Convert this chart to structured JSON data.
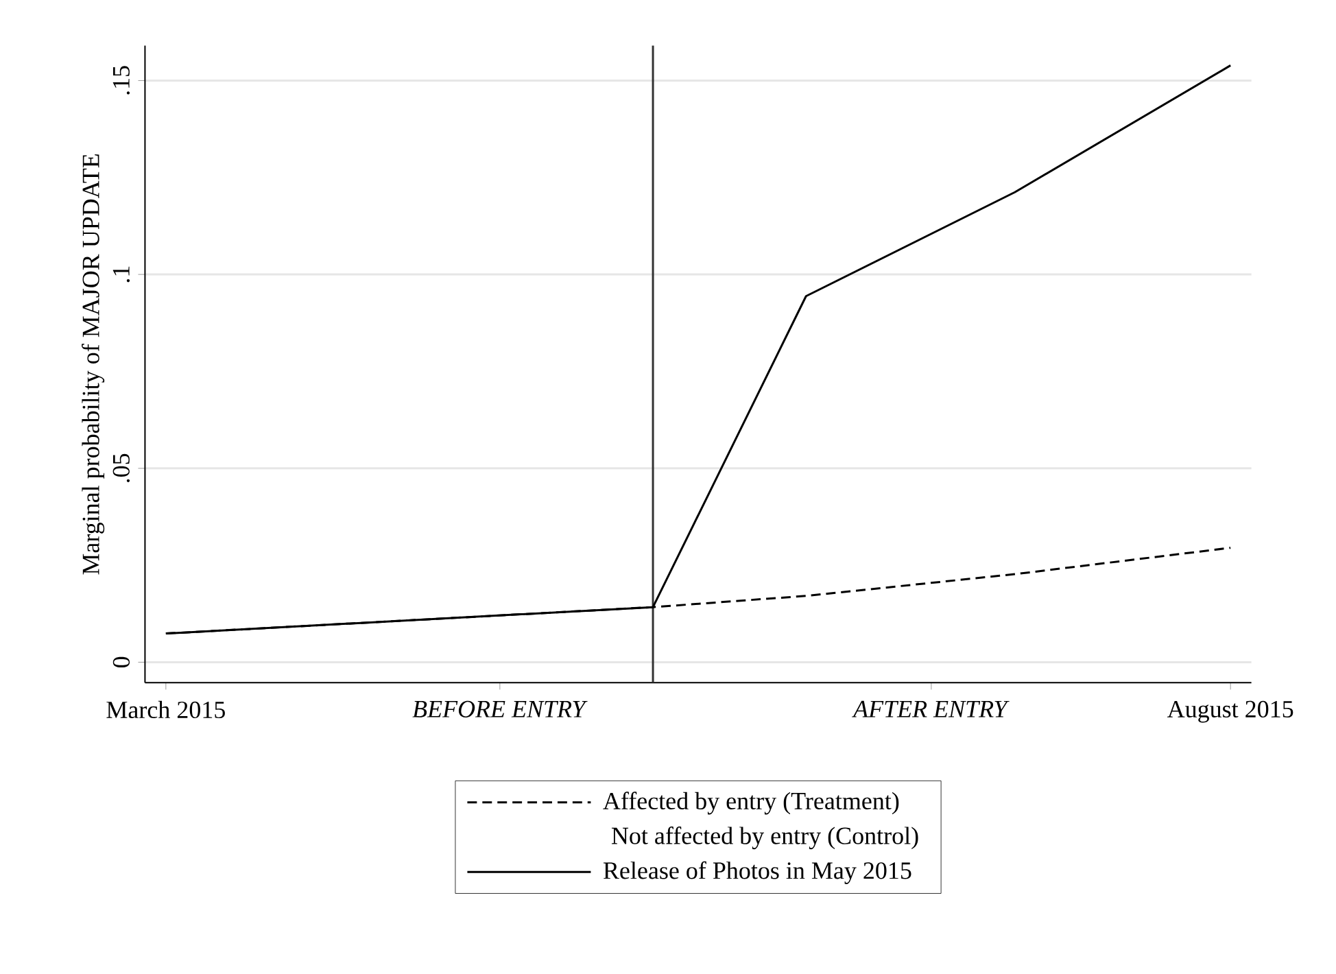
{
  "chart_data": {
    "type": "line",
    "ylabel": "Marginal probability of MAJOR UPDATE",
    "x": [
      "2015-03-01",
      "2015-05-10",
      "2015-06-01",
      "2015-07-01",
      "2015-08-01"
    ],
    "series": [
      {
        "name": "Affected by entry (Treatment)",
        "color": "#000000",
        "line_style": "dashed",
        "values": [
          0.0074,
          0.0142,
          0.0171,
          0.0227,
          0.0295
        ]
      },
      {
        "name": "Release of Photos in May 2015",
        "color": "#000000",
        "line_style": "solid",
        "values": [
          0.0074,
          0.0142,
          0.0944,
          0.1212,
          0.1539
        ]
      }
    ],
    "xlim": [
      "2015-02-26",
      "2015-08-04"
    ],
    "ylim": [
      -0.0053,
      0.159
    ],
    "xticks": [
      {
        "value": "2015-03-01",
        "label": "March 2015"
      },
      {
        "value": "2015-04-18",
        "label": "*BEFORE ENTRY*"
      },
      {
        "value": "2015-06-19",
        "label": "*AFTER ENTRY*"
      },
      {
        "value": "2015-08-01",
        "label": "August 2015"
      }
    ],
    "yticks": [
      {
        "value": 0,
        "label": "0"
      },
      {
        "value": 0.05,
        "label": ".05"
      },
      {
        "value": 0.1,
        "label": ".1"
      },
      {
        "value": 0.15,
        "label": ".15"
      }
    ],
    "ref_lines": [
      {
        "axis": "x",
        "value": "2015-05-10",
        "color": "#333333"
      }
    ],
    "annotations": [
      "Not affected by entry (Control)"
    ],
    "grid": "y",
    "legend": "bottom",
    "marker": "none"
  }
}
